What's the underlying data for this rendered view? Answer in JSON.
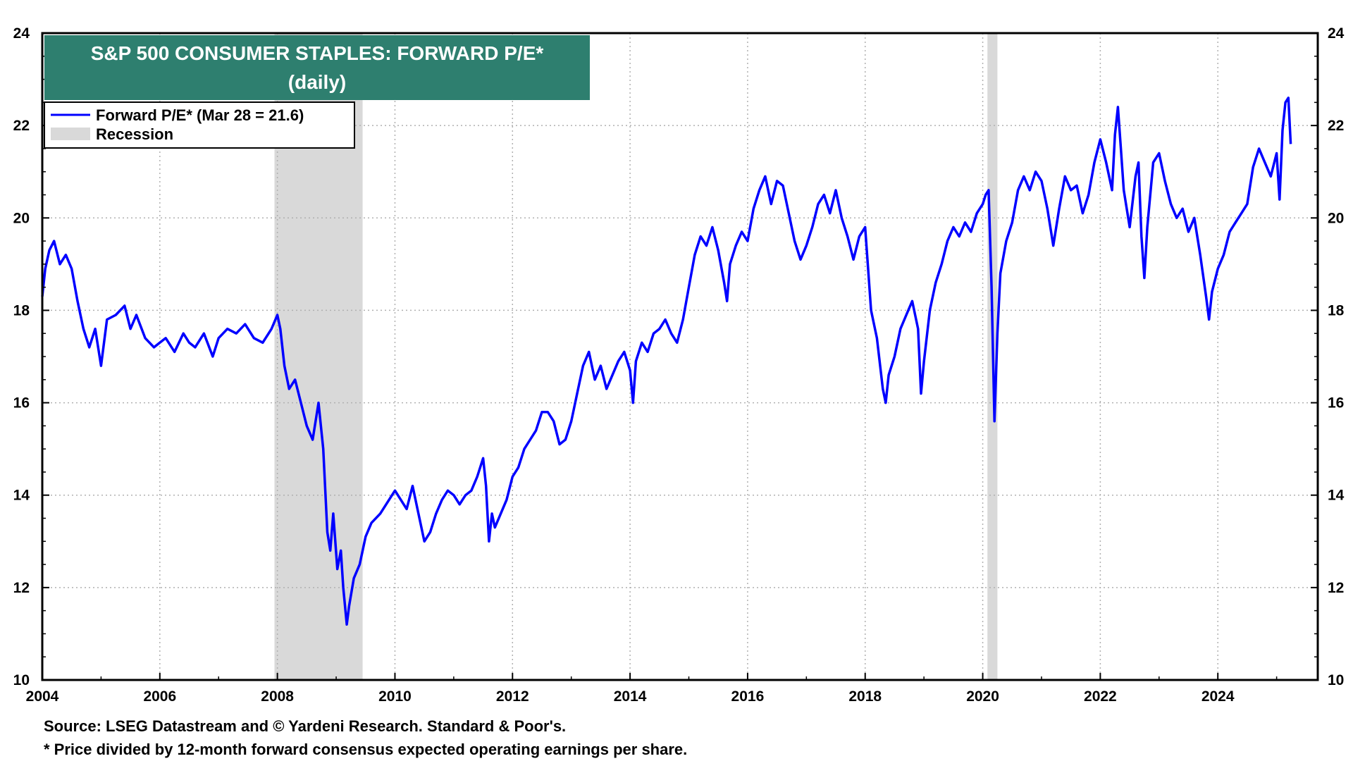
{
  "chart_data": {
    "type": "line",
    "title": "S&P 500 CONSUMER STAPLES: FORWARD P/E*",
    "subtitle": "(daily)",
    "xlabel": "",
    "ylabel": "",
    "xlim": [
      2004,
      2025.7
    ],
    "ylim": [
      10,
      24
    ],
    "x_ticks": [
      "2004",
      "2006",
      "2008",
      "2010",
      "2012",
      "2014",
      "2016",
      "2018",
      "2020",
      "2022",
      "2024"
    ],
    "y_ticks": [
      "10",
      "12",
      "14",
      "16",
      "18",
      "20",
      "22",
      "24"
    ],
    "grid": true,
    "legend_position": "top-left",
    "legend": [
      {
        "label": "Forward P/E* (Mar 28 = 21.6)",
        "kind": "line",
        "color": "#0000ff"
      },
      {
        "label": "Recession",
        "kind": "band",
        "color": "#d9d9d9"
      }
    ],
    "recessions": [
      {
        "start": 2007.95,
        "end": 2009.45
      },
      {
        "start": 2020.08,
        "end": 2020.25
      }
    ],
    "series": [
      {
        "name": "Forward P/E*",
        "color": "#0000ff",
        "points": [
          [
            2004.0,
            18.3
          ],
          [
            2004.05,
            18.9
          ],
          [
            2004.12,
            19.3
          ],
          [
            2004.2,
            19.5
          ],
          [
            2004.3,
            19.0
          ],
          [
            2004.4,
            19.2
          ],
          [
            2004.5,
            18.9
          ],
          [
            2004.6,
            18.2
          ],
          [
            2004.7,
            17.6
          ],
          [
            2004.8,
            17.2
          ],
          [
            2004.9,
            17.6
          ],
          [
            2005.0,
            16.8
          ],
          [
            2005.1,
            17.8
          ],
          [
            2005.25,
            17.9
          ],
          [
            2005.4,
            18.1
          ],
          [
            2005.5,
            17.6
          ],
          [
            2005.6,
            17.9
          ],
          [
            2005.75,
            17.4
          ],
          [
            2005.9,
            17.2
          ],
          [
            2006.0,
            17.3
          ],
          [
            2006.1,
            17.4
          ],
          [
            2006.25,
            17.1
          ],
          [
            2006.4,
            17.5
          ],
          [
            2006.5,
            17.3
          ],
          [
            2006.6,
            17.2
          ],
          [
            2006.75,
            17.5
          ],
          [
            2006.9,
            17.0
          ],
          [
            2007.0,
            17.4
          ],
          [
            2007.15,
            17.6
          ],
          [
            2007.3,
            17.5
          ],
          [
            2007.45,
            17.7
          ],
          [
            2007.6,
            17.4
          ],
          [
            2007.75,
            17.3
          ],
          [
            2007.9,
            17.6
          ],
          [
            2008.0,
            17.9
          ],
          [
            2008.05,
            17.6
          ],
          [
            2008.12,
            16.8
          ],
          [
            2008.2,
            16.3
          ],
          [
            2008.3,
            16.5
          ],
          [
            2008.4,
            16.0
          ],
          [
            2008.5,
            15.5
          ],
          [
            2008.6,
            15.2
          ],
          [
            2008.7,
            16.0
          ],
          [
            2008.78,
            15.0
          ],
          [
            2008.85,
            13.2
          ],
          [
            2008.9,
            12.8
          ],
          [
            2008.95,
            13.6
          ],
          [
            2009.02,
            12.4
          ],
          [
            2009.08,
            12.8
          ],
          [
            2009.12,
            12.0
          ],
          [
            2009.18,
            11.2
          ],
          [
            2009.22,
            11.6
          ],
          [
            2009.3,
            12.2
          ],
          [
            2009.4,
            12.5
          ],
          [
            2009.5,
            13.1
          ],
          [
            2009.6,
            13.4
          ],
          [
            2009.75,
            13.6
          ],
          [
            2009.9,
            13.9
          ],
          [
            2010.0,
            14.1
          ],
          [
            2010.1,
            13.9
          ],
          [
            2010.2,
            13.7
          ],
          [
            2010.3,
            14.2
          ],
          [
            2010.4,
            13.6
          ],
          [
            2010.5,
            13.0
          ],
          [
            2010.6,
            13.2
          ],
          [
            2010.7,
            13.6
          ],
          [
            2010.8,
            13.9
          ],
          [
            2010.9,
            14.1
          ],
          [
            2011.0,
            14.0
          ],
          [
            2011.1,
            13.8
          ],
          [
            2011.2,
            14.0
          ],
          [
            2011.3,
            14.1
          ],
          [
            2011.4,
            14.4
          ],
          [
            2011.5,
            14.8
          ],
          [
            2011.55,
            14.2
          ],
          [
            2011.6,
            13.0
          ],
          [
            2011.65,
            13.6
          ],
          [
            2011.7,
            13.3
          ],
          [
            2011.8,
            13.6
          ],
          [
            2011.9,
            13.9
          ],
          [
            2012.0,
            14.4
          ],
          [
            2012.1,
            14.6
          ],
          [
            2012.2,
            15.0
          ],
          [
            2012.3,
            15.2
          ],
          [
            2012.4,
            15.4
          ],
          [
            2012.5,
            15.8
          ],
          [
            2012.6,
            15.8
          ],
          [
            2012.7,
            15.6
          ],
          [
            2012.8,
            15.1
          ],
          [
            2012.9,
            15.2
          ],
          [
            2013.0,
            15.6
          ],
          [
            2013.1,
            16.2
          ],
          [
            2013.2,
            16.8
          ],
          [
            2013.3,
            17.1
          ],
          [
            2013.4,
            16.5
          ],
          [
            2013.5,
            16.8
          ],
          [
            2013.6,
            16.3
          ],
          [
            2013.7,
            16.6
          ],
          [
            2013.8,
            16.9
          ],
          [
            2013.9,
            17.1
          ],
          [
            2014.0,
            16.7
          ],
          [
            2014.05,
            16.0
          ],
          [
            2014.1,
            16.9
          ],
          [
            2014.2,
            17.3
          ],
          [
            2014.3,
            17.1
          ],
          [
            2014.4,
            17.5
          ],
          [
            2014.5,
            17.6
          ],
          [
            2014.6,
            17.8
          ],
          [
            2014.7,
            17.5
          ],
          [
            2014.8,
            17.3
          ],
          [
            2014.9,
            17.8
          ],
          [
            2015.0,
            18.5
          ],
          [
            2015.1,
            19.2
          ],
          [
            2015.2,
            19.6
          ],
          [
            2015.3,
            19.4
          ],
          [
            2015.4,
            19.8
          ],
          [
            2015.5,
            19.3
          ],
          [
            2015.6,
            18.6
          ],
          [
            2015.65,
            18.2
          ],
          [
            2015.7,
            19.0
          ],
          [
            2015.8,
            19.4
          ],
          [
            2015.9,
            19.7
          ],
          [
            2016.0,
            19.5
          ],
          [
            2016.1,
            20.2
          ],
          [
            2016.2,
            20.6
          ],
          [
            2016.3,
            20.9
          ],
          [
            2016.4,
            20.3
          ],
          [
            2016.5,
            20.8
          ],
          [
            2016.6,
            20.7
          ],
          [
            2016.7,
            20.1
          ],
          [
            2016.8,
            19.5
          ],
          [
            2016.9,
            19.1
          ],
          [
            2017.0,
            19.4
          ],
          [
            2017.1,
            19.8
          ],
          [
            2017.2,
            20.3
          ],
          [
            2017.3,
            20.5
          ],
          [
            2017.4,
            20.1
          ],
          [
            2017.5,
            20.6
          ],
          [
            2017.6,
            20.0
          ],
          [
            2017.7,
            19.6
          ],
          [
            2017.8,
            19.1
          ],
          [
            2017.9,
            19.6
          ],
          [
            2018.0,
            19.8
          ],
          [
            2018.05,
            18.9
          ],
          [
            2018.1,
            18.0
          ],
          [
            2018.2,
            17.4
          ],
          [
            2018.3,
            16.3
          ],
          [
            2018.35,
            16.0
          ],
          [
            2018.4,
            16.6
          ],
          [
            2018.5,
            17.0
          ],
          [
            2018.6,
            17.6
          ],
          [
            2018.7,
            17.9
          ],
          [
            2018.8,
            18.2
          ],
          [
            2018.9,
            17.6
          ],
          [
            2018.95,
            16.2
          ],
          [
            2019.0,
            16.9
          ],
          [
            2019.1,
            18.0
          ],
          [
            2019.2,
            18.6
          ],
          [
            2019.3,
            19.0
          ],
          [
            2019.4,
            19.5
          ],
          [
            2019.5,
            19.8
          ],
          [
            2019.6,
            19.6
          ],
          [
            2019.7,
            19.9
          ],
          [
            2019.8,
            19.7
          ],
          [
            2019.9,
            20.1
          ],
          [
            2020.0,
            20.3
          ],
          [
            2020.05,
            20.5
          ],
          [
            2020.1,
            20.6
          ],
          [
            2020.15,
            18.5
          ],
          [
            2020.2,
            15.6
          ],
          [
            2020.25,
            17.5
          ],
          [
            2020.3,
            18.8
          ],
          [
            2020.4,
            19.5
          ],
          [
            2020.5,
            19.9
          ],
          [
            2020.6,
            20.6
          ],
          [
            2020.7,
            20.9
          ],
          [
            2020.8,
            20.6
          ],
          [
            2020.9,
            21.0
          ],
          [
            2021.0,
            20.8
          ],
          [
            2021.1,
            20.2
          ],
          [
            2021.2,
            19.4
          ],
          [
            2021.3,
            20.2
          ],
          [
            2021.4,
            20.9
          ],
          [
            2021.5,
            20.6
          ],
          [
            2021.6,
            20.7
          ],
          [
            2021.7,
            20.1
          ],
          [
            2021.8,
            20.5
          ],
          [
            2021.9,
            21.2
          ],
          [
            2022.0,
            21.7
          ],
          [
            2022.1,
            21.2
          ],
          [
            2022.2,
            20.6
          ],
          [
            2022.25,
            21.8
          ],
          [
            2022.3,
            22.4
          ],
          [
            2022.35,
            21.5
          ],
          [
            2022.4,
            20.6
          ],
          [
            2022.5,
            19.8
          ],
          [
            2022.6,
            20.9
          ],
          [
            2022.65,
            21.2
          ],
          [
            2022.7,
            19.6
          ],
          [
            2022.75,
            18.7
          ],
          [
            2022.8,
            19.8
          ],
          [
            2022.9,
            21.2
          ],
          [
            2023.0,
            21.4
          ],
          [
            2023.1,
            20.8
          ],
          [
            2023.2,
            20.3
          ],
          [
            2023.3,
            20.0
          ],
          [
            2023.4,
            20.2
          ],
          [
            2023.5,
            19.7
          ],
          [
            2023.6,
            20.0
          ],
          [
            2023.7,
            19.2
          ],
          [
            2023.8,
            18.3
          ],
          [
            2023.85,
            17.8
          ],
          [
            2023.9,
            18.4
          ],
          [
            2024.0,
            18.9
          ],
          [
            2024.1,
            19.2
          ],
          [
            2024.2,
            19.7
          ],
          [
            2024.3,
            19.9
          ],
          [
            2024.4,
            20.1
          ],
          [
            2024.5,
            20.3
          ],
          [
            2024.6,
            21.1
          ],
          [
            2024.7,
            21.5
          ],
          [
            2024.8,
            21.2
          ],
          [
            2024.9,
            20.9
          ],
          [
            2025.0,
            21.4
          ],
          [
            2025.05,
            20.4
          ],
          [
            2025.1,
            21.9
          ],
          [
            2025.15,
            22.5
          ],
          [
            2025.2,
            22.6
          ],
          [
            2025.24,
            21.6
          ]
        ]
      }
    ]
  },
  "notes": {
    "source": "Source: LSEG Datastream and © Yardeni Research. Standard & Poor's.",
    "footnote": "* Price divided by 12-month forward consensus expected operating earnings per share."
  },
  "colors": {
    "title_bg": "#2e7f6f",
    "line": "#0000ff",
    "recession": "#d9d9d9",
    "grid": "#b0b0b0"
  }
}
